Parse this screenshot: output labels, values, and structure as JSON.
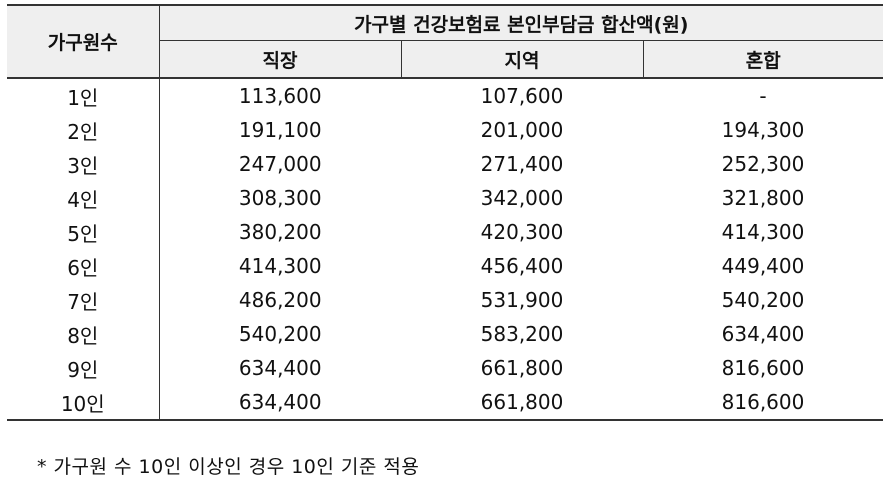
{
  "table": {
    "row_header": "가구원수",
    "group_header": "가구별 건강보험료 본인부담금 합산액(원)",
    "columns": [
      "직장",
      "지역",
      "혼합"
    ],
    "rows": [
      {
        "label": "1인",
        "values": [
          "113,600",
          "107,600",
          "-"
        ]
      },
      {
        "label": "2인",
        "values": [
          "191,100",
          "201,000",
          "194,300"
        ]
      },
      {
        "label": "3인",
        "values": [
          "247,000",
          "271,400",
          "252,300"
        ]
      },
      {
        "label": "4인",
        "values": [
          "308,300",
          "342,000",
          "321,800"
        ]
      },
      {
        "label": "5인",
        "values": [
          "380,200",
          "420,300",
          "414,300"
        ]
      },
      {
        "label": "6인",
        "values": [
          "414,300",
          "456,400",
          "449,400"
        ]
      },
      {
        "label": "7인",
        "values": [
          "486,200",
          "531,900",
          "540,200"
        ]
      },
      {
        "label": "8인",
        "values": [
          "540,200",
          "583,200",
          "634,400"
        ]
      },
      {
        "label": "9인",
        "values": [
          "634,400",
          "661,800",
          "816,600"
        ]
      },
      {
        "label": "10인",
        "values": [
          "634,400",
          "661,800",
          "816,600"
        ]
      }
    ]
  },
  "footnote": "* 가구원 수 10인 이상인 경우 10인 기준 적용"
}
